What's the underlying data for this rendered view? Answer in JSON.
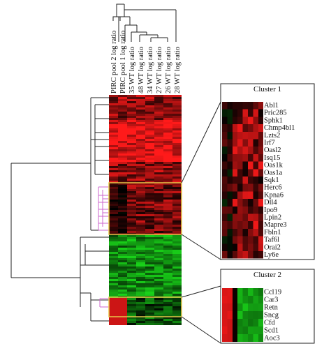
{
  "columns": [
    "PIRC pool 2 log ratio",
    "PIRC pool 1 log ratio",
    "35 WT log ratio",
    "48 WT log ratio",
    "34 WT log ratio",
    "27 WT log ratio",
    "26 WT log ratio",
    "28 WT log ratio"
  ],
  "colors": {
    "up": "#ff1a1a",
    "down": "#19d219",
    "neutral": "#000000",
    "highlight_box": "#e8c74a",
    "subtree": "#cc66cc"
  },
  "cluster1": {
    "title": "Cluster 1",
    "genes": [
      "Abl1",
      "Pric285",
      "Sphk1",
      "Chmp4bl1",
      "Lzts2",
      "Irf7",
      "Oasl2",
      "Isq15",
      "Oas1k",
      "Oas1a",
      "Sqk1",
      "Herc6",
      "Kpna6",
      "Dll4",
      "Ipo9",
      "Lpin2",
      "Mapre3",
      "Fbln1",
      "Taf6l",
      "Orai2",
      "Ly6e"
    ]
  },
  "cluster2": {
    "title": "Cluster 2",
    "genes": [
      "Ccl19",
      "Car3",
      "Retn",
      "Sncg",
      "Cfd",
      "Scd1",
      "Aoc3"
    ]
  }
}
